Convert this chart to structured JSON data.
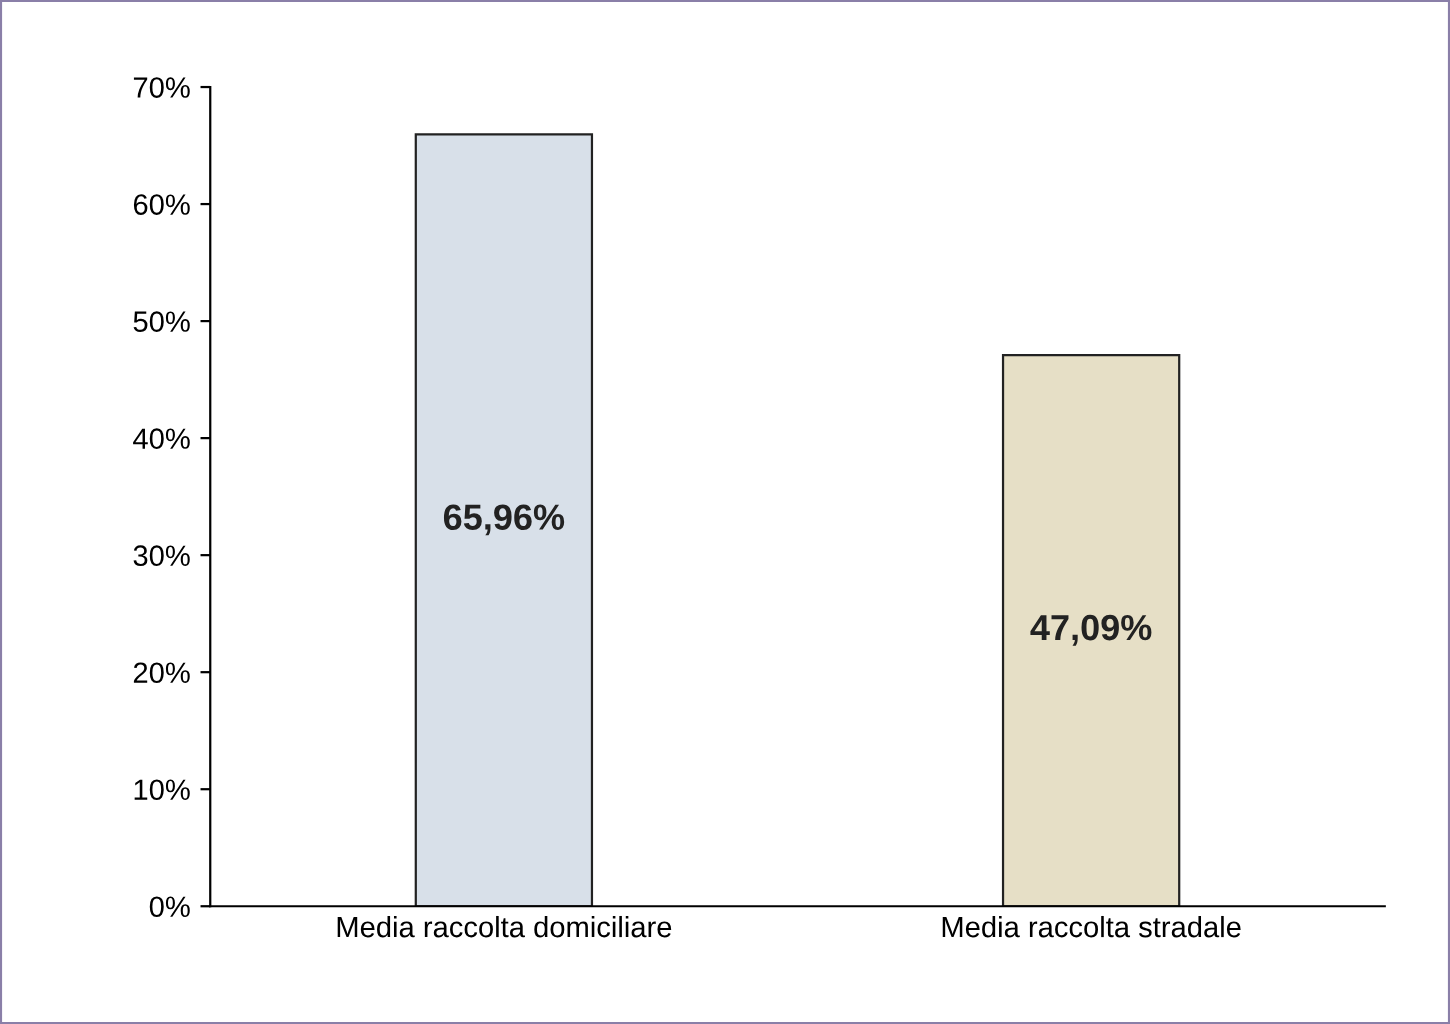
{
  "chart_data": {
    "type": "bar",
    "categories": [
      "Media raccolta domiciliare",
      "Media raccolta stradale"
    ],
    "values": [
      65.96,
      47.09
    ],
    "colors": [
      "#d8e0e9",
      "#e6dfc6"
    ],
    "value_labels": [
      "65,96%",
      "47,09%"
    ],
    "ylim": [
      0,
      70
    ],
    "yticks": [
      {
        "value": 0,
        "label": "0%"
      },
      {
        "value": 10,
        "label": "10%"
      },
      {
        "value": 20,
        "label": "20%"
      },
      {
        "value": 30,
        "label": "30%"
      },
      {
        "value": 40,
        "label": "40%"
      },
      {
        "value": 50,
        "label": "50%"
      },
      {
        "value": 60,
        "label": "60%"
      },
      {
        "value": 70,
        "label": "70%"
      }
    ],
    "grid": false,
    "legend": false
  }
}
